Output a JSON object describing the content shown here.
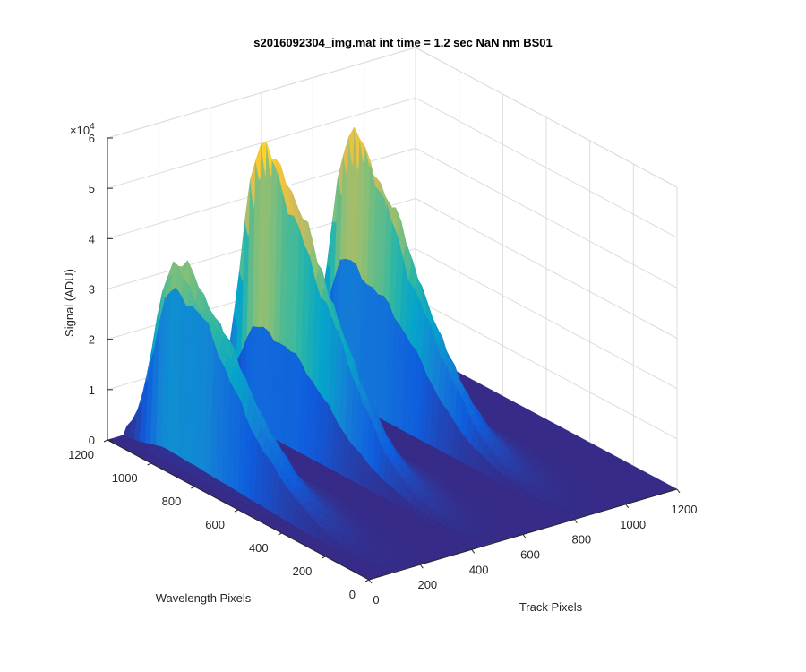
{
  "chart_data": {
    "type": "surface",
    "title": "s2016092304_img.mat int time = 1.2 sec  NaN nm BS01",
    "xlabel": "Track Pixels",
    "ylabel": "Wavelength Pixels",
    "zlabel": "Signal (ADU)",
    "x_ticks": [
      "0",
      "200",
      "400",
      "600",
      "800",
      "1000",
      "1200"
    ],
    "y_ticks": [
      "0",
      "200",
      "400",
      "600",
      "800",
      "1000",
      "1200"
    ],
    "z_ticks": [
      "0",
      "1",
      "2",
      "3",
      "4",
      "5",
      "6"
    ],
    "z_exponent_prefix": "×10",
    "z_exponent": "4",
    "xlim": [
      0,
      1200
    ],
    "ylim": [
      0,
      1200
    ],
    "zlim": [
      0,
      60000
    ],
    "grid": true,
    "colormap": "parula",
    "colors": [
      "#352a87",
      "#0f5cdd",
      "#1481d6",
      "#06a4ca",
      "#2eb7a4",
      "#87bf77",
      "#d1bb59",
      "#fec832",
      "#f9fb0e"
    ],
    "ridges": [
      {
        "track_start": 60,
        "track_end": 300,
        "peak_signal": 42000,
        "peak_wavelength": 1000
      },
      {
        "track_start": 430,
        "track_end": 650,
        "peak_signal": 59000,
        "peak_wavelength": 1030
      },
      {
        "track_start": 790,
        "track_end": 1020,
        "peak_signal": 55000,
        "peak_wavelength": 1050
      }
    ]
  }
}
